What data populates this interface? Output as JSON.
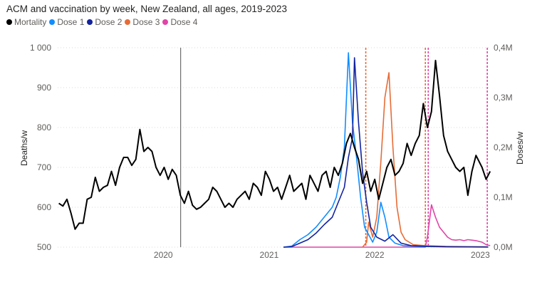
{
  "chart_data": {
    "type": "line",
    "title": "ACM and vaccination by week, New Zealand, all ages, 2019-2023",
    "x_axis": {
      "start": "2019-01",
      "end": "2023-02",
      "ticks": [
        "2020",
        "2021",
        "2022",
        "2023"
      ]
    },
    "y_axis_left": {
      "label": "Deaths/w",
      "ylim": [
        500,
        1000
      ],
      "ticks": [
        {
          "value": 500,
          "label": "500"
        },
        {
          "value": 600,
          "label": "600"
        },
        {
          "value": 700,
          "label": "700"
        },
        {
          "value": 800,
          "label": "800"
        },
        {
          "value": 900,
          "label": "900"
        },
        {
          "value": 1000,
          "label": "1 000"
        }
      ]
    },
    "y_axis_right": {
      "label": "Doses/w",
      "ylim": [
        0,
        400000
      ],
      "ticks": [
        {
          "value": 0,
          "label": "0,0M"
        },
        {
          "value": 100000,
          "label": "0,1M"
        },
        {
          "value": 200000,
          "label": "0,2M"
        },
        {
          "value": 300000,
          "label": "0,3M"
        },
        {
          "value": 400000,
          "label": "0,4M"
        }
      ]
    },
    "reference_lines": [
      {
        "date": "2020-03-01",
        "color": "#6e6e6e",
        "style": "solid"
      },
      {
        "date": "2021-12-01",
        "color": "#e66c37",
        "style": "dashed"
      },
      {
        "date": "2022-06-25",
        "color": "#e66c37",
        "style": "dashed"
      },
      {
        "date": "2022-07-05",
        "color": "#e044a7",
        "style": "dashed"
      },
      {
        "date": "2023-01-25",
        "color": "#e044a7",
        "style": "dashed"
      }
    ],
    "series": [
      {
        "name": "Mortality",
        "color": "#000000",
        "axis": "left",
        "points": [
          [
            "2019-01-05",
            610
          ],
          [
            "2019-01-19",
            603
          ],
          [
            "2019-02-02",
            620
          ],
          [
            "2019-02-16",
            585
          ],
          [
            "2019-03-02",
            545
          ],
          [
            "2019-03-16",
            560
          ],
          [
            "2019-03-30",
            560
          ],
          [
            "2019-04-13",
            620
          ],
          [
            "2019-04-27",
            625
          ],
          [
            "2019-05-11",
            675
          ],
          [
            "2019-05-25",
            640
          ],
          [
            "2019-06-08",
            650
          ],
          [
            "2019-06-22",
            655
          ],
          [
            "2019-07-06",
            690
          ],
          [
            "2019-07-20",
            655
          ],
          [
            "2019-08-03",
            700
          ],
          [
            "2019-08-17",
            725
          ],
          [
            "2019-08-31",
            725
          ],
          [
            "2019-09-14",
            705
          ],
          [
            "2019-09-28",
            720
          ],
          [
            "2019-10-12",
            795
          ],
          [
            "2019-10-26",
            740
          ],
          [
            "2019-11-09",
            750
          ],
          [
            "2019-11-23",
            740
          ],
          [
            "2019-12-07",
            700
          ],
          [
            "2019-12-21",
            680
          ],
          [
            "2020-01-04",
            700
          ],
          [
            "2020-01-18",
            670
          ],
          [
            "2020-02-01",
            695
          ],
          [
            "2020-02-15",
            680
          ],
          [
            "2020-02-29",
            630
          ],
          [
            "2020-03-14",
            610
          ],
          [
            "2020-03-28",
            640
          ],
          [
            "2020-04-11",
            605
          ],
          [
            "2020-04-25",
            595
          ],
          [
            "2020-05-09",
            600
          ],
          [
            "2020-05-23",
            610
          ],
          [
            "2020-06-06",
            620
          ],
          [
            "2020-06-20",
            650
          ],
          [
            "2020-07-04",
            640
          ],
          [
            "2020-07-18",
            620
          ],
          [
            "2020-08-01",
            600
          ],
          [
            "2020-08-15",
            610
          ],
          [
            "2020-08-29",
            600
          ],
          [
            "2020-09-12",
            620
          ],
          [
            "2020-09-26",
            630
          ],
          [
            "2020-10-10",
            640
          ],
          [
            "2020-10-24",
            620
          ],
          [
            "2020-11-07",
            660
          ],
          [
            "2020-11-21",
            650
          ],
          [
            "2020-12-05",
            630
          ],
          [
            "2020-12-19",
            690
          ],
          [
            "2021-01-02",
            670
          ],
          [
            "2021-01-16",
            640
          ],
          [
            "2021-01-30",
            650
          ],
          [
            "2021-02-13",
            620
          ],
          [
            "2021-02-27",
            650
          ],
          [
            "2021-03-13",
            680
          ],
          [
            "2021-03-27",
            640
          ],
          [
            "2021-04-10",
            650
          ],
          [
            "2021-04-24",
            660
          ],
          [
            "2021-05-08",
            620
          ],
          [
            "2021-05-22",
            680
          ],
          [
            "2021-06-05",
            660
          ],
          [
            "2021-06-19",
            640
          ],
          [
            "2021-07-03",
            680
          ],
          [
            "2021-07-17",
            690
          ],
          [
            "2021-07-31",
            650
          ],
          [
            "2021-08-14",
            700
          ],
          [
            "2021-08-28",
            680
          ],
          [
            "2021-09-11",
            710
          ],
          [
            "2021-09-25",
            760
          ],
          [
            "2021-10-09",
            785
          ],
          [
            "2021-10-23",
            750
          ],
          [
            "2021-11-06",
            720
          ],
          [
            "2021-11-20",
            660
          ],
          [
            "2021-12-04",
            690
          ],
          [
            "2021-12-18",
            640
          ],
          [
            "2022-01-01",
            670
          ],
          [
            "2022-01-15",
            620
          ],
          [
            "2022-01-29",
            660
          ],
          [
            "2022-02-12",
            700
          ],
          [
            "2022-02-26",
            720
          ],
          [
            "2022-03-12",
            680
          ],
          [
            "2022-03-26",
            690
          ],
          [
            "2022-04-09",
            710
          ],
          [
            "2022-04-23",
            760
          ],
          [
            "2022-05-07",
            730
          ],
          [
            "2022-05-21",
            760
          ],
          [
            "2022-06-04",
            780
          ],
          [
            "2022-06-18",
            860
          ],
          [
            "2022-07-02",
            800
          ],
          [
            "2022-07-16",
            840
          ],
          [
            "2022-07-30",
            968
          ],
          [
            "2022-08-13",
            880
          ],
          [
            "2022-08-27",
            780
          ],
          [
            "2022-09-10",
            740
          ],
          [
            "2022-09-24",
            720
          ],
          [
            "2022-10-08",
            700
          ],
          [
            "2022-10-22",
            690
          ],
          [
            "2022-11-05",
            700
          ],
          [
            "2022-11-19",
            630
          ],
          [
            "2022-12-03",
            690
          ],
          [
            "2022-12-17",
            730
          ],
          [
            "2023-01-07",
            700
          ],
          [
            "2023-01-21",
            670
          ],
          [
            "2023-02-04",
            690
          ]
        ]
      },
      {
        "name": "Dose 1",
        "color": "#118dff",
        "axis": "right",
        "points": [
          [
            "2021-02-20",
            0
          ],
          [
            "2021-03-20",
            2000
          ],
          [
            "2021-04-17",
            15000
          ],
          [
            "2021-05-15",
            25000
          ],
          [
            "2021-06-12",
            40000
          ],
          [
            "2021-07-10",
            60000
          ],
          [
            "2021-08-07",
            80000
          ],
          [
            "2021-08-21",
            100000
          ],
          [
            "2021-09-04",
            140000
          ],
          [
            "2021-09-18",
            200000
          ],
          [
            "2021-10-02",
            390000
          ],
          [
            "2021-10-16",
            250000
          ],
          [
            "2021-10-30",
            180000
          ],
          [
            "2021-11-13",
            100000
          ],
          [
            "2021-11-27",
            40000
          ],
          [
            "2021-12-11",
            25000
          ],
          [
            "2021-12-25",
            10000
          ],
          [
            "2022-01-08",
            30000
          ],
          [
            "2022-01-22",
            90000
          ],
          [
            "2022-02-05",
            60000
          ],
          [
            "2022-02-19",
            20000
          ],
          [
            "2022-03-12",
            8000
          ],
          [
            "2022-04-09",
            3000
          ],
          [
            "2022-06-04",
            1500
          ],
          [
            "2022-09-03",
            500
          ],
          [
            "2023-01-28",
            300
          ]
        ]
      },
      {
        "name": "Dose 2",
        "color": "#12239e",
        "axis": "right",
        "points": [
          [
            "2021-02-20",
            0
          ],
          [
            "2021-03-20",
            1000
          ],
          [
            "2021-04-17",
            8000
          ],
          [
            "2021-05-15",
            15000
          ],
          [
            "2021-06-12",
            28000
          ],
          [
            "2021-07-10",
            45000
          ],
          [
            "2021-08-07",
            60000
          ],
          [
            "2021-08-21",
            80000
          ],
          [
            "2021-09-04",
            100000
          ],
          [
            "2021-09-18",
            120000
          ],
          [
            "2021-10-02",
            180000
          ],
          [
            "2021-10-16",
            220000
          ],
          [
            "2021-10-23",
            380000
          ],
          [
            "2021-11-06",
            250000
          ],
          [
            "2021-11-20",
            150000
          ],
          [
            "2021-12-04",
            90000
          ],
          [
            "2021-12-18",
            40000
          ],
          [
            "2022-01-08",
            20000
          ],
          [
            "2022-02-05",
            12000
          ],
          [
            "2022-03-05",
            25000
          ],
          [
            "2022-04-02",
            8000
          ],
          [
            "2022-05-07",
            3000
          ],
          [
            "2022-07-02",
            1500
          ],
          [
            "2022-10-01",
            500
          ],
          [
            "2023-01-28",
            300
          ]
        ]
      },
      {
        "name": "Dose 3",
        "color": "#e66c37",
        "axis": "right",
        "points": [
          [
            "2021-11-20",
            0
          ],
          [
            "2021-12-04",
            10000
          ],
          [
            "2021-12-11",
            50000
          ],
          [
            "2021-12-25",
            20000
          ],
          [
            "2022-01-08",
            60000
          ],
          [
            "2022-01-22",
            170000
          ],
          [
            "2022-02-05",
            300000
          ],
          [
            "2022-02-19",
            350000
          ],
          [
            "2022-03-05",
            200000
          ],
          [
            "2022-03-19",
            80000
          ],
          [
            "2022-04-02",
            30000
          ],
          [
            "2022-04-16",
            15000
          ],
          [
            "2022-05-14",
            5000
          ],
          [
            "2022-06-25",
            3000
          ],
          [
            "2022-09-03",
            1500
          ],
          [
            "2023-01-28",
            500
          ]
        ]
      },
      {
        "name": "Dose 4",
        "color": "#e044a7",
        "axis": "right",
        "points": [
          [
            "2021-02-20",
            0
          ],
          [
            "2022-06-25",
            0
          ],
          [
            "2022-07-02",
            20000
          ],
          [
            "2022-07-16",
            85000
          ],
          [
            "2022-07-30",
            60000
          ],
          [
            "2022-08-13",
            40000
          ],
          [
            "2022-08-27",
            30000
          ],
          [
            "2022-09-10",
            20000
          ],
          [
            "2022-09-24",
            15000
          ],
          [
            "2022-10-08",
            14000
          ],
          [
            "2022-10-22",
            15000
          ],
          [
            "2022-11-05",
            13000
          ],
          [
            "2022-11-19",
            15000
          ],
          [
            "2022-12-03",
            14000
          ],
          [
            "2022-12-17",
            13000
          ],
          [
            "2023-01-07",
            10000
          ],
          [
            "2023-01-21",
            5000
          ],
          [
            "2023-02-04",
            3000
          ]
        ]
      }
    ]
  }
}
